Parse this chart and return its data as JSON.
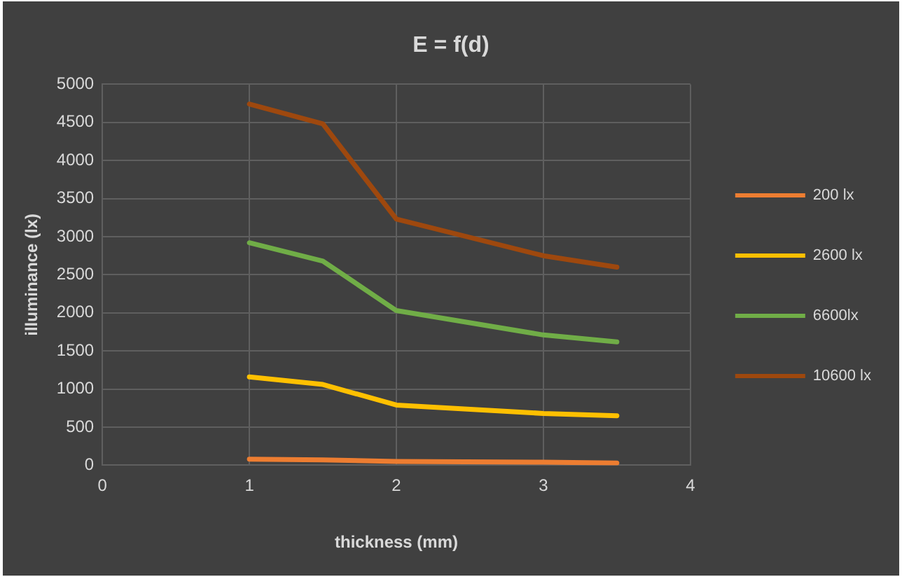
{
  "chart_data": {
    "type": "line",
    "title": "E = f(d)",
    "xlabel": "thickness (mm)",
    "ylabel": "illuminance (lx)",
    "x": [
      1,
      1.5,
      2,
      3,
      3.5
    ],
    "series": [
      {
        "name": "200 lx",
        "color": "#ed7d31",
        "values": [
          80,
          70,
          50,
          40,
          30
        ]
      },
      {
        "name": "2600 lx",
        "color": "#ffc000",
        "values": [
          1160,
          1060,
          790,
          680,
          650
        ]
      },
      {
        "name": "6600lx",
        "color": "#70ad47",
        "values": [
          2920,
          2680,
          2030,
          1710,
          1620
        ]
      },
      {
        "name": "10600 lx",
        "color": "#9e480e",
        "values": [
          4740,
          4480,
          3230,
          2750,
          2600
        ]
      }
    ],
    "xlim": [
      0,
      4
    ],
    "xticks": [
      0,
      1,
      2,
      3,
      4
    ],
    "ylim": [
      0,
      5000
    ],
    "yticks": [
      0,
      500,
      1000,
      1500,
      2000,
      2500,
      3000,
      3500,
      4000,
      4500,
      5000
    ],
    "grid": true,
    "legend": "right",
    "marker": "none",
    "line_style": "solid"
  }
}
